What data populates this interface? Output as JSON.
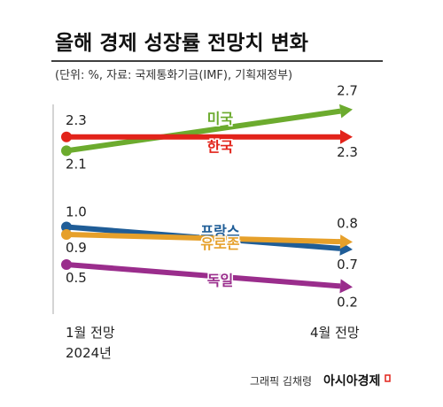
{
  "chart_data": {
    "type": "line",
    "title": "올해 경제 성장률 전망치 변화",
    "subtitle": "(단위: %, 자료: 국제통화기금(IMF), 기획재정부)",
    "x": [
      "1월 전망",
      "4월 전망"
    ],
    "x_sub": "2024년",
    "series": [
      {
        "name": "미국",
        "values": [
          2.1,
          2.7
        ],
        "color": "#6cab2e"
      },
      {
        "name": "한국",
        "values": [
          2.3,
          2.3
        ],
        "color": "#e2231a"
      },
      {
        "name": "프랑스",
        "values": [
          1.0,
          0.7
        ],
        "color": "#1f5d97"
      },
      {
        "name": "유로존",
        "values": [
          0.9,
          0.8
        ],
        "color": "#e6a02a"
      },
      {
        "name": "독일",
        "values": [
          0.5,
          0.2
        ],
        "color": "#9a2d8c"
      }
    ],
    "labels": {
      "left": [
        {
          "text": "2.3",
          "series": 1
        },
        {
          "text": "2.1",
          "series": 0
        },
        {
          "text": "1.0",
          "series": 2
        },
        {
          "text": "0.9",
          "series": 3
        },
        {
          "text": "0.5",
          "series": 4
        }
      ],
      "right": [
        {
          "text": "2.7",
          "series": 0
        },
        {
          "text": "2.3",
          "series": 1
        },
        {
          "text": "0.8",
          "series": 3
        },
        {
          "text": "0.7",
          "series": 2
        },
        {
          "text": "0.2",
          "series": 4
        }
      ]
    }
  },
  "footer": {
    "credit": "그래픽 김채령",
    "brand": "아시아경제"
  }
}
